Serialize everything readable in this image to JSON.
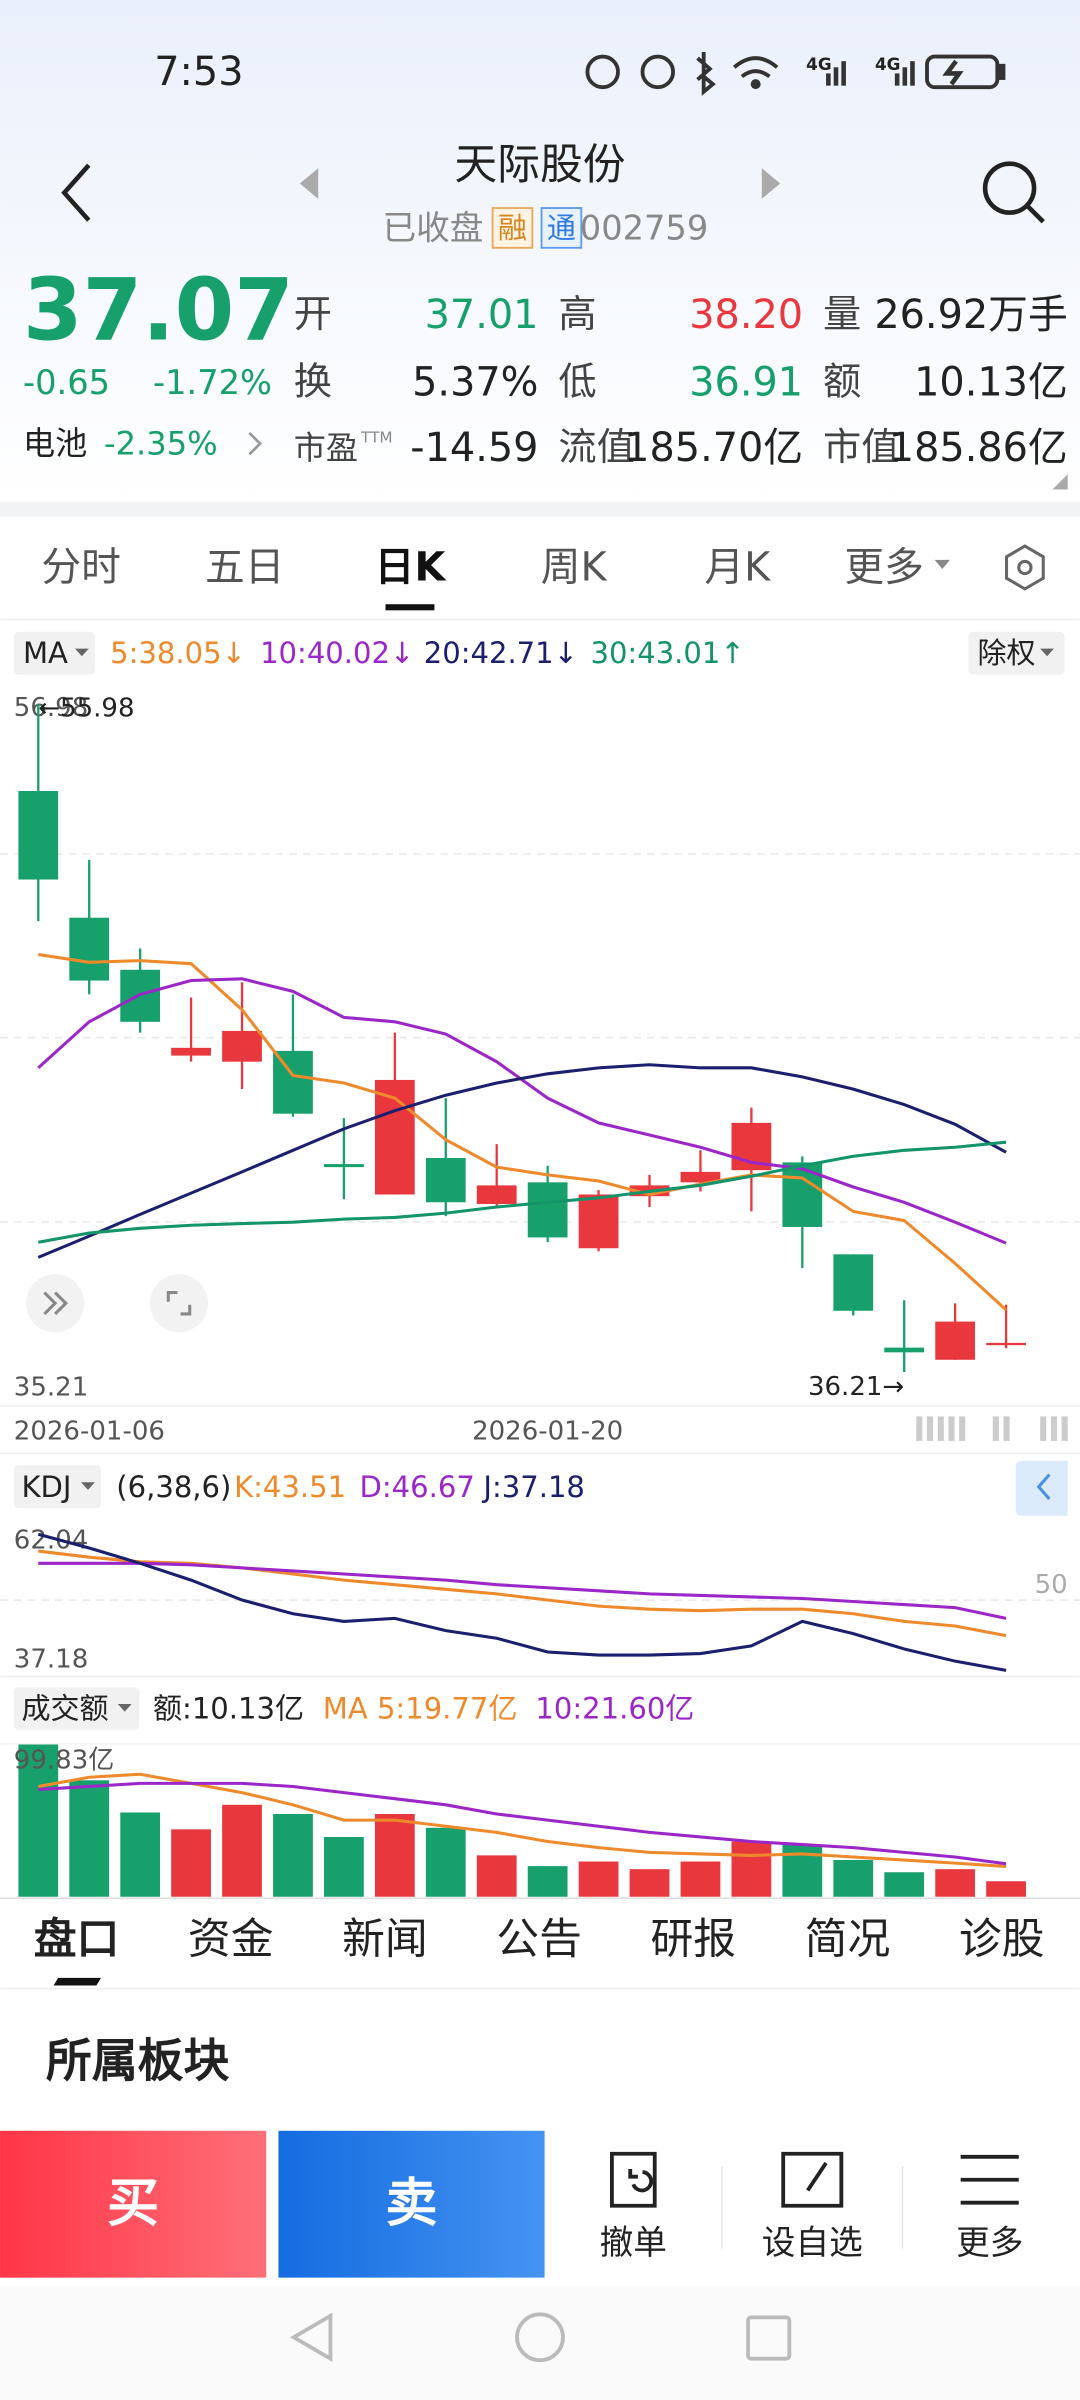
{
  "status_bar": {
    "time": "7:53",
    "signal_labels": [
      "4G",
      "4G"
    ]
  },
  "header": {
    "title": "天际股份",
    "status": "已收盘",
    "tags": [
      "融",
      "通"
    ],
    "code": "002759"
  },
  "quote": {
    "price": "37.07",
    "change": "-0.65",
    "change_pct": "-1.72%",
    "sector": "电池",
    "sector_pct": "-2.35%",
    "fields": [
      {
        "label": "开",
        "value": "37.01"
      },
      {
        "label": "高",
        "value": "38.20"
      },
      {
        "label": "量",
        "value": "26.92万手"
      },
      {
        "label": "换",
        "value": "5.37%"
      },
      {
        "label": "低",
        "value": "36.91"
      },
      {
        "label": "额",
        "value": "10.13亿"
      },
      {
        "label": "市盈",
        "label_sup": "TTM",
        "value": "-14.59"
      },
      {
        "label": "流值",
        "value": "185.70亿"
      },
      {
        "label": "市值",
        "value": "185.86亿"
      }
    ]
  },
  "period_tabs": {
    "items": [
      "分时",
      "五日",
      "日K",
      "周K",
      "月K",
      "更多"
    ],
    "active": 2
  },
  "chart_data": [
    {
      "type": "candlestick",
      "indicator": "MA",
      "adjust": "除权",
      "categories": [
        "2026-01-06",
        null,
        null,
        null,
        null,
        null,
        null,
        null,
        null,
        null,
        "2026-01-20",
        null,
        null,
        null,
        null,
        null,
        null,
        null,
        null,
        null
      ],
      "open": [
        53.4,
        49.65,
        48.11,
        45.57,
        45.39,
        45.71,
        42.36,
        41.46,
        42.54,
        41.18,
        41.82,
        39.87,
        41.41,
        41.82,
        42.18,
        42.41,
        39.69,
        36.93,
        36.57,
        37.01
      ],
      "high": [
        55.98,
        51.36,
        48.74,
        47.29,
        47.74,
        47.38,
        43.72,
        46.25,
        44.31,
        42.95,
        42.31,
        41.59,
        42.04,
        42.77,
        44.03,
        42.59,
        39.69,
        38.33,
        38.24,
        38.2
      ],
      "low": [
        49.55,
        47.38,
        46.25,
        45.39,
        44.58,
        43.76,
        41.32,
        41.46,
        40.82,
        41.05,
        40.05,
        39.78,
        41.09,
        41.55,
        40.96,
        39.28,
        37.88,
        36.21,
        36.57,
        36.91
      ],
      "close": [
        50.78,
        47.79,
        46.57,
        45.8,
        46.3,
        43.85,
        42.27,
        44.85,
        41.23,
        41.73,
        40.19,
        41.46,
        41.73,
        42.13,
        43.58,
        40.5,
        38.02,
        36.79,
        37.7,
        37.07
      ],
      "up_color": "#e8383d",
      "down_color": "#17a06b",
      "series": [
        {
          "name": "5:38.05↓",
          "color": "#ee8a2b",
          "values": [
            48.56,
            48.33,
            48.38,
            48.29,
            46.93,
            44.98,
            44.76,
            44.31,
            43.08,
            42.27,
            42.04,
            41.86,
            41.46,
            41.77,
            42.04,
            41.95,
            40.96,
            40.69,
            39.42,
            38.05
          ]
        },
        {
          "name": "10:40.02↓",
          "color": "#9b27c9",
          "values": [
            45.21,
            46.57,
            47.38,
            47.79,
            47.84,
            47.47,
            46.7,
            46.57,
            46.21,
            45.39,
            44.31,
            43.58,
            43.22,
            42.86,
            42.41,
            42.22,
            41.68,
            41.23,
            40.64,
            40.02
          ]
        },
        {
          "name": "20:42.71↓",
          "color": "#1a1f6e",
          "values": [
            39.6,
            40.23,
            40.87,
            41.5,
            42.13,
            42.77,
            43.4,
            43.94,
            44.4,
            44.76,
            45.03,
            45.21,
            45.3,
            45.21,
            45.21,
            44.94,
            44.58,
            44.12,
            43.54,
            42.71
          ]
        },
        {
          "name": "30:43.01↑",
          "color": "#14946a",
          "values": [
            40.05,
            40.32,
            40.46,
            40.55,
            40.6,
            40.64,
            40.73,
            40.78,
            40.91,
            41.09,
            41.23,
            41.36,
            41.55,
            41.73,
            42.0,
            42.31,
            42.59,
            42.77,
            42.86,
            43.01
          ]
        }
      ],
      "annotations": [
        {
          "text": "←55.98",
          "value": 55.98
        },
        {
          "text": "36.21→",
          "value": 36.21
        }
      ],
      "ylim": [
        35.21,
        56.98
      ],
      "yticks": [
        35.21,
        56.98
      ],
      "grid_values": [
        40.65,
        46.1,
        51.54
      ]
    },
    {
      "type": "line",
      "title": "KDJ",
      "params": "(6,38,6)",
      "series": [
        {
          "name": "K:43.51",
          "color": "#ee8a2b",
          "values": [
            58.97,
            57.85,
            57.01,
            56.73,
            55.9,
            54.78,
            53.66,
            52.82,
            51.98,
            51.15,
            50.03,
            48.91,
            48.35,
            48.07,
            48.35,
            48.35,
            47.52,
            46.12,
            45.28,
            43.51
          ]
        },
        {
          "name": "D:46.67",
          "color": "#9b27c9",
          "values": [
            56.73,
            56.73,
            56.73,
            56.45,
            55.9,
            55.34,
            54.78,
            54.22,
            53.66,
            52.82,
            52.26,
            51.71,
            51.15,
            50.87,
            50.59,
            50.31,
            49.75,
            49.19,
            48.63,
            46.67
          ]
        },
        {
          "name": "J:37.18",
          "color": "#1a1f6e",
          "values": [
            62.04,
            59.53,
            56.74,
            53.66,
            50.03,
            47.52,
            46.12,
            46.68,
            44.45,
            43.05,
            40.53,
            39.97,
            39.97,
            40.25,
            41.65,
            46.12,
            43.88,
            41.09,
            38.86,
            37.18
          ]
        }
      ],
      "ylim": [
        37.18,
        62.04
      ],
      "yticks": [
        62.04,
        37.18
      ],
      "y2lim": [
        37.18,
        62.04
      ],
      "y2ticks": [
        50
      ]
    },
    {
      "type": "bar",
      "title": "成交额",
      "summary": "额:10.13亿",
      "values": [
        99.83,
        76,
        55,
        44,
        60,
        54,
        39,
        54,
        45,
        27,
        20,
        23,
        18,
        23,
        36,
        34,
        24,
        16,
        18,
        10.13
      ],
      "series": [
        {
          "name": "MA 5:19.77亿",
          "color": "#ee8a2b",
          "values": [
            72,
            78,
            80,
            74,
            68,
            60,
            50,
            50,
            46,
            42,
            36,
            32,
            29,
            28,
            27,
            28,
            26,
            24,
            22,
            19.77
          ]
        },
        {
          "name": "10:21.60亿",
          "color": "#9b27c9",
          "values": [
            70,
            72,
            74,
            74,
            74,
            72,
            68,
            64,
            60,
            54,
            50,
            46,
            42,
            39,
            36,
            34,
            32,
            29,
            26,
            21.6
          ]
        }
      ],
      "ylim": [
        0,
        99.83
      ],
      "yticks": [
        {
          "value": 99.83,
          "label": "99.83亿"
        }
      ]
    }
  ],
  "detail_tabs": {
    "items": [
      "盘口",
      "资金",
      "新闻",
      "公告",
      "研报",
      "简况",
      "诊股"
    ],
    "active": 0
  },
  "section": {
    "title": "所属板块"
  },
  "actions": {
    "buy": "买",
    "sell": "卖",
    "tools": [
      "撤单",
      "设自选",
      "更多"
    ]
  }
}
